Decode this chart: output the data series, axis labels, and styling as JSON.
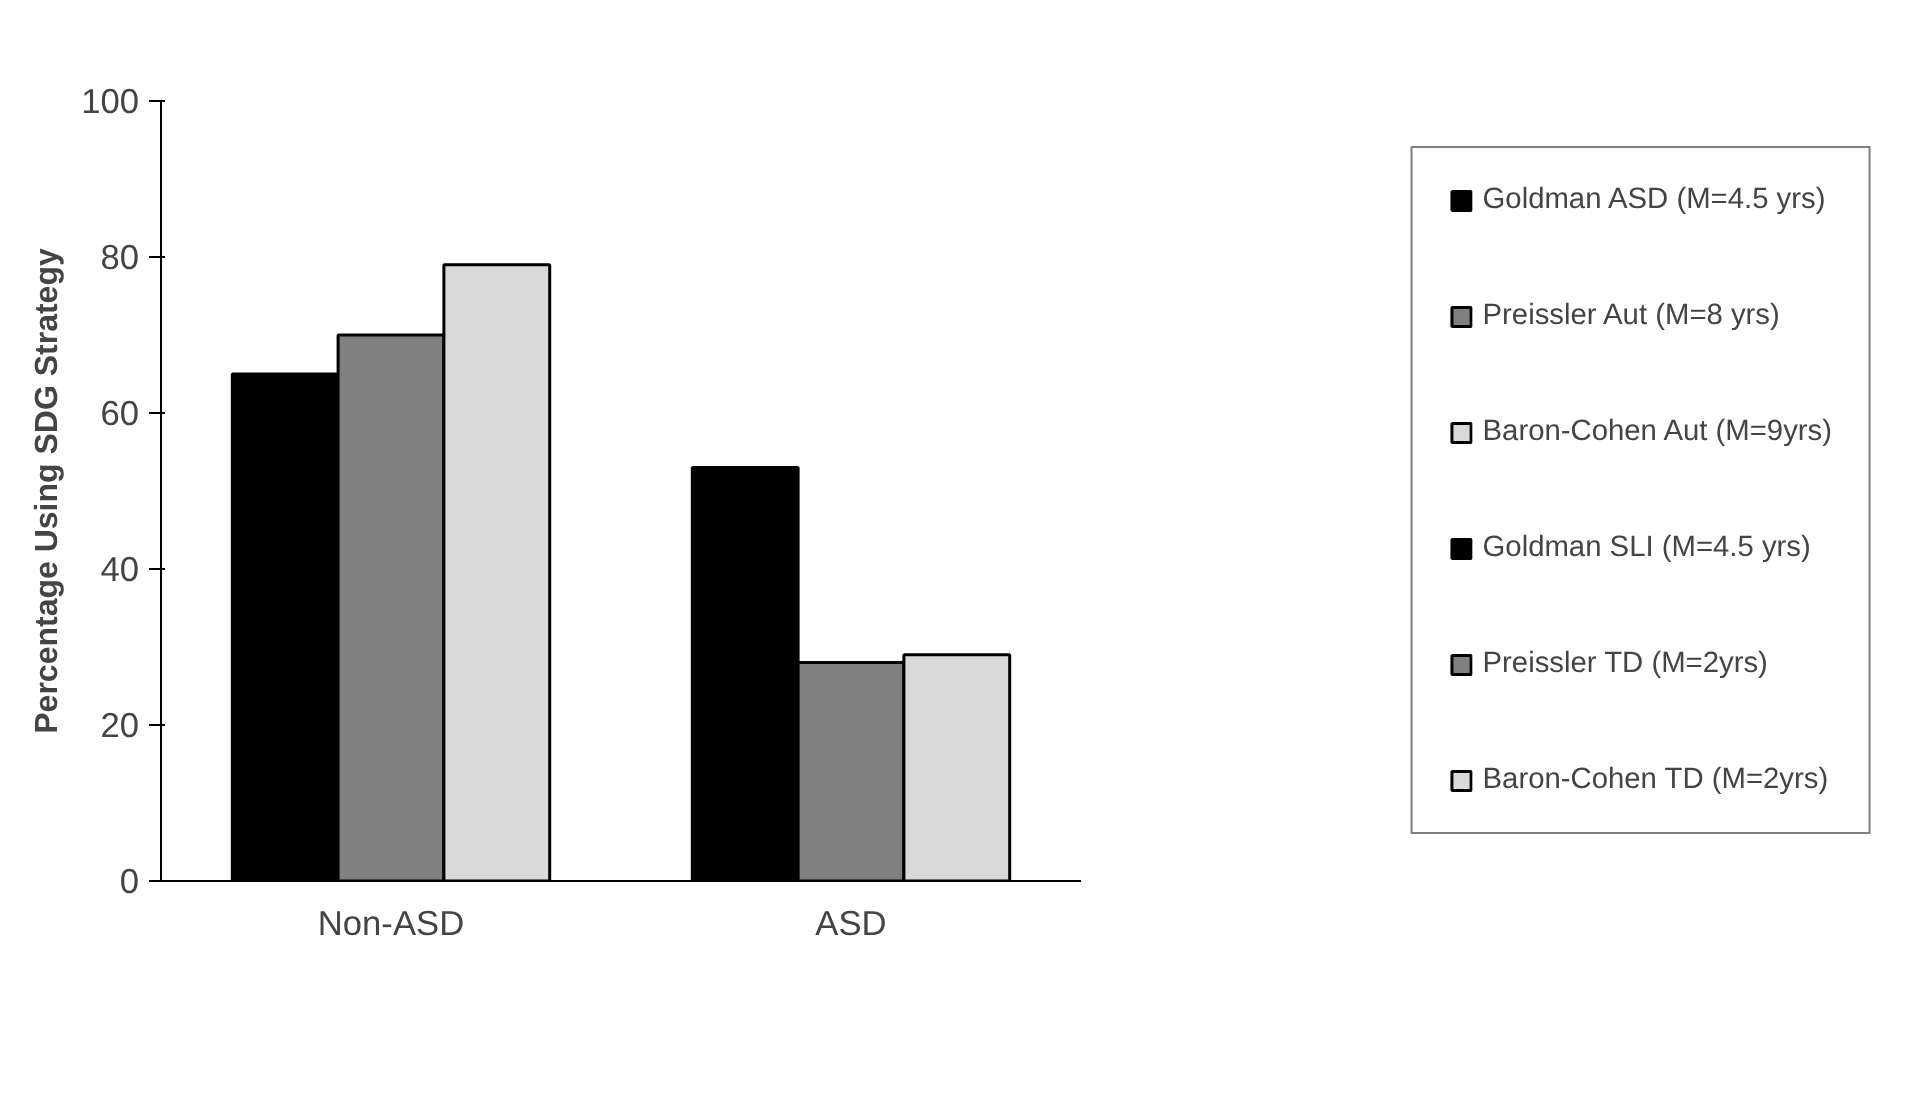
{
  "chart_data": {
    "type": "bar",
    "ylabel": "Percentage Using SDG Strategy",
    "categories": [
      "Non-ASD",
      "ASD"
    ],
    "series": [
      {
        "name": "Goldman ASD (M=4.5 yrs)",
        "color": "#000000",
        "values": [
          null,
          53
        ]
      },
      {
        "name": "Preissler Aut (M=8 yrs)",
        "color": "#808080",
        "values": [
          null,
          28
        ]
      },
      {
        "name": "Baron-Cohen Aut (M=9yrs)",
        "color": "#d9d9d9",
        "values": [
          null,
          29
        ]
      },
      {
        "name": "Goldman SLI (M=4.5 yrs)",
        "color": "#000000",
        "values": [
          65,
          null
        ]
      },
      {
        "name": "Preissler TD (M=2yrs)",
        "color": "#808080",
        "values": [
          70,
          null
        ]
      },
      {
        "name": "Baron-Cohen TD (M=2yrs)",
        "color": "#d9d9d9",
        "values": [
          79,
          null
        ]
      }
    ],
    "ylim": [
      0,
      100
    ],
    "yticks": [
      0,
      20,
      40,
      60,
      80,
      100
    ],
    "grid": false,
    "legend": "right"
  }
}
